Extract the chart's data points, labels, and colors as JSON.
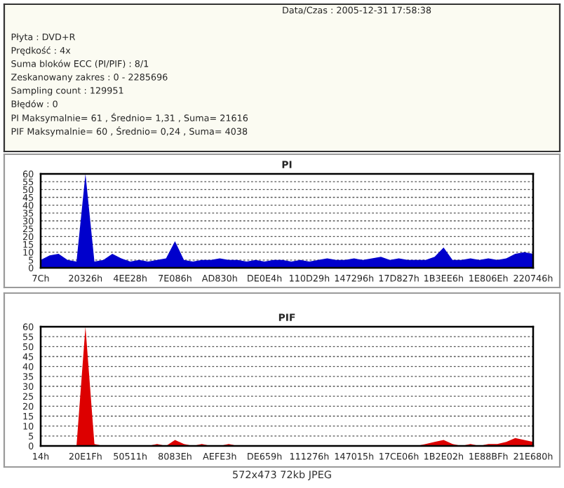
{
  "chart_data": [
    {
      "type": "other",
      "annotations": [
        "Data/Czas : 2005-12-31 17:58:38",
        "Płyta : DVD+R",
        "Prędkość : 4x",
        "Suma bloków ECC (PI/PIF) : 8/1",
        "Zeskanowany zakres : 0 - 2285696",
        "Sampling count : 129951",
        "Błędów : 0",
        "PI Maksymalnie= 61 , Średnio= 1,31 , Suma= 21616",
        "PIF Maksymalnie= 60 , Średnio= 0,24 , Suma= 4038"
      ]
    },
    {
      "type": "area",
      "title": "PI",
      "categories": [
        "7Ch",
        null,
        null,
        null,
        null,
        "20326h",
        null,
        null,
        null,
        null,
        "4EE28h",
        null,
        null,
        null,
        null,
        "7E086h",
        null,
        null,
        null,
        null,
        "AD830h",
        null,
        null,
        null,
        null,
        "DE0E4h",
        null,
        null,
        null,
        null,
        "110D29h",
        null,
        null,
        null,
        null,
        "147296h",
        null,
        null,
        null,
        null,
        "17D827h",
        null,
        null,
        null,
        null,
        "1B3EE6h",
        null,
        null,
        null,
        null,
        "1E806Eh",
        null,
        null,
        null,
        null,
        "220746h"
      ],
      "series": [
        {
          "color": "#0000cc",
          "values": [
            5,
            8,
            9,
            5,
            4,
            60,
            4,
            5,
            9,
            6,
            4,
            5,
            4,
            5,
            6,
            17,
            5,
            4,
            5,
            5,
            6,
            5,
            5,
            4,
            5,
            4,
            5,
            5,
            4,
            5,
            4,
            5,
            6,
            5,
            5,
            6,
            5,
            6,
            7,
            5,
            6,
            5,
            5,
            5,
            7,
            13,
            5,
            5,
            6,
            5,
            6,
            5,
            6,
            9,
            10,
            9
          ]
        }
      ],
      "ylim": [
        0,
        60
      ],
      "yticks": [
        0,
        5,
        10,
        15,
        20,
        25,
        30,
        35,
        40,
        45,
        50,
        55,
        60
      ],
      "grid": "y",
      "line_style": "dashed"
    },
    {
      "type": "area",
      "title": "PIF",
      "categories": [
        "14h",
        null,
        null,
        null,
        null,
        "20E1Fh",
        null,
        null,
        null,
        null,
        "50511h",
        null,
        null,
        null,
        null,
        "8083Eh",
        null,
        null,
        null,
        null,
        "AEFE3h",
        null,
        null,
        null,
        null,
        "DE659h",
        null,
        null,
        null,
        null,
        "111276h",
        null,
        null,
        null,
        null,
        "147015h",
        null,
        null,
        null,
        null,
        "17CE06h",
        null,
        null,
        null,
        null,
        "1B2E02h",
        null,
        null,
        null,
        null,
        "1E88BFh",
        null,
        null,
        null,
        null,
        "21E680h"
      ],
      "series": [
        {
          "color": "#dd0000",
          "values": [
            0,
            0,
            0,
            0,
            0,
            60,
            1,
            0,
            0,
            0,
            0,
            0,
            0,
            1,
            0,
            3,
            1,
            0,
            1,
            0,
            0,
            1,
            0,
            0,
            0,
            0,
            0,
            0,
            0,
            0,
            0,
            0,
            0,
            0,
            0,
            0,
            0,
            0,
            0,
            0,
            0,
            0,
            0,
            1,
            2,
            3,
            1,
            0,
            1,
            0,
            1,
            1,
            2,
            4,
            3,
            2
          ]
        }
      ],
      "ylim": [
        0,
        60
      ],
      "yticks": [
        0,
        5,
        10,
        15,
        20,
        25,
        30,
        35,
        40,
        45,
        50,
        55,
        60
      ],
      "grid": "y",
      "line_style": "dashed",
      "annotations": [
        "572x473 72kb JPEG"
      ]
    }
  ]
}
